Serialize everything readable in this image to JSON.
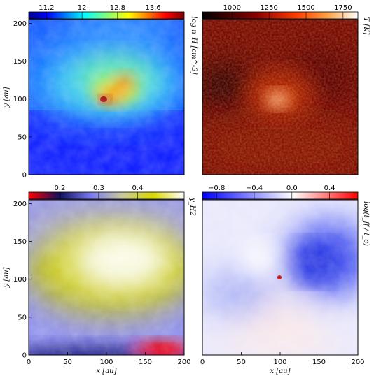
{
  "chart_data": [
    {
      "type": "heatmap",
      "position": "top-left",
      "colormap": "jet",
      "colorbar": {
        "ticks": [
          11.2,
          12.0,
          12.8,
          13.6
        ],
        "range": [
          10.8,
          14.3
        ],
        "label": "log n_H [cm^-3]"
      },
      "xlim": [
        0,
        200
      ],
      "ylim": [
        0,
        205
      ],
      "xticks": [],
      "yticks": [
        0,
        50,
        100,
        150,
        200
      ],
      "xlabel": "",
      "ylabel": "y [au]",
      "peak": {
        "x": 100,
        "y": 98
      }
    },
    {
      "type": "heatmap",
      "position": "top-right",
      "colormap": "gist_heat",
      "colorbar": {
        "ticks": [
          1000,
          1250,
          1500,
          1750
        ],
        "range": [
          800,
          1850
        ],
        "label": "T [K]"
      },
      "xlim": [
        0,
        200
      ],
      "ylim": [
        0,
        205
      ],
      "xticks": [],
      "yticks": [],
      "peak": {
        "x": 100,
        "y": 98
      }
    },
    {
      "type": "heatmap",
      "position": "bottom-left",
      "colormap": "gist_stern_like",
      "colorbar": {
        "ticks": [
          0.2,
          0.3,
          0.4
        ],
        "range": [
          0.12,
          0.52
        ],
        "label": "y_H2"
      },
      "xlim": [
        0,
        200
      ],
      "ylim": [
        0,
        205
      ],
      "xticks": [
        0,
        50,
        100,
        150,
        200
      ],
      "yticks": [
        0,
        50,
        100,
        150,
        200
      ],
      "xlabel": "x [au]",
      "ylabel": "y [au]"
    },
    {
      "type": "heatmap",
      "position": "bottom-right",
      "colormap": "bwr",
      "colorbar": {
        "ticks": [
          -0.8,
          -0.4,
          0.0,
          0.4
        ],
        "range": [
          -0.95,
          0.7
        ],
        "label": "log(t_ff / t_c)"
      },
      "xlim": [
        0,
        200
      ],
      "ylim": [
        0,
        205
      ],
      "xticks": [
        0,
        50,
        100,
        150,
        200
      ],
      "yticks": [],
      "xlabel": "x [au]",
      "ylabel": ""
    }
  ],
  "labels": {
    "y_axis": "y [au]",
    "x_axis": "x [au]",
    "cb_nh": "log n_H [cm^-3]",
    "cb_t": "T [K]",
    "cb_yh2": "y_H2",
    "cb_tff": "log(t_ff / t_c)"
  }
}
